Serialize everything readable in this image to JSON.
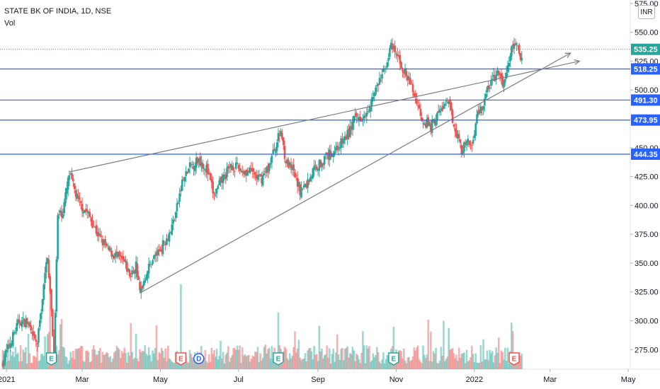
{
  "header": {
    "symbol_line": "STATE BK OF INDIA, 1D, NSE",
    "volume_label": "Vol",
    "currency_button": "INR"
  },
  "colors": {
    "up": "#26a69a",
    "down": "#ef5350",
    "level_line": "#2962ff",
    "price_tag_current": "#26a69a",
    "trendline": "#787b86",
    "event_earnings_green": "#26a69a",
    "event_earnings_red": "#ef5350",
    "event_dividend": "#2962ff"
  },
  "chart_data": {
    "type": "candlestick",
    "title": "STATE BK OF INDIA, 1D, NSE",
    "y_axis": {
      "ticks": [
        275,
        300,
        325,
        350,
        375,
        400,
        425,
        450,
        475,
        500,
        525,
        550,
        575
      ],
      "tick_labels": [
        "275.00",
        "300.00",
        "325.00",
        "350.00",
        "375.00",
        "400.00",
        "425.00",
        "450.00",
        "475.00",
        "500.00",
        "525.00",
        "550.00",
        "575.00"
      ],
      "range": [
        258,
        578
      ],
      "position": "right"
    },
    "x_axis": {
      "tick_labels": [
        "2021",
        "Mar",
        "May",
        "Jul",
        "Sep",
        "Nov",
        "2022",
        "Mar",
        "May"
      ],
      "tick_days": [
        0,
        59,
        120,
        181,
        243,
        304,
        365,
        424,
        485
      ]
    },
    "horizontal_levels": [
      {
        "label": "518.25",
        "value": 518.25
      },
      {
        "label": "491.30",
        "value": 491.3
      },
      {
        "label": "473.95",
        "value": 473.95
      },
      {
        "label": "444.35",
        "value": 444.35
      }
    ],
    "current_price": {
      "label": "535.25",
      "value": 535.25
    },
    "trendlines": [
      {
        "points": [
          [
            49,
            429
          ],
          [
            447,
            525
          ]
        ]
      },
      {
        "points": [
          [
            104,
            324
          ],
          [
            440,
            532
          ]
        ]
      }
    ],
    "series": [
      {
        "anchors": [
          [
            -3,
            265
          ],
          [
            10,
            300
          ],
          [
            17,
            298
          ],
          [
            20,
            285
          ],
          [
            24,
            280
          ],
          [
            28,
            320
          ],
          [
            32,
            358
          ],
          [
            37,
            272
          ],
          [
            40,
            390
          ],
          [
            44,
            395
          ],
          [
            49,
            427
          ],
          [
            56,
            403
          ],
          [
            64,
            392
          ],
          [
            72,
            373
          ],
          [
            80,
            360
          ],
          [
            86,
            356
          ],
          [
            92,
            350
          ],
          [
            97,
            338
          ],
          [
            101,
            349
          ],
          [
            104,
            324
          ],
          [
            108,
            338
          ],
          [
            113,
            352
          ],
          [
            120,
            362
          ],
          [
            128,
            378
          ],
          [
            133,
            398
          ],
          [
            137,
            420
          ],
          [
            143,
            433
          ],
          [
            150,
            440
          ],
          [
            156,
            432
          ],
          [
            162,
            408
          ],
          [
            168,
            422
          ],
          [
            176,
            435
          ],
          [
            184,
            430
          ],
          [
            192,
            428
          ],
          [
            198,
            422
          ],
          [
            204,
            432
          ],
          [
            210,
            452
          ],
          [
            214,
            465
          ],
          [
            218,
            438
          ],
          [
            224,
            428
          ],
          [
            229,
            413
          ],
          [
            234,
            418
          ],
          [
            240,
            432
          ],
          [
            248,
            440
          ],
          [
            256,
            448
          ],
          [
            262,
            455
          ],
          [
            267,
            463
          ],
          [
            271,
            474
          ],
          [
            278,
            478
          ],
          [
            283,
            487
          ],
          [
            288,
            500
          ],
          [
            294,
            515
          ],
          [
            300,
            537
          ],
          [
            306,
            527
          ],
          [
            311,
            514
          ],
          [
            316,
            503
          ],
          [
            320,
            490
          ],
          [
            324,
            476
          ],
          [
            327,
            472
          ],
          [
            331,
            468
          ],
          [
            336,
            478
          ],
          [
            341,
            486
          ],
          [
            345,
            488
          ],
          [
            349,
            471
          ],
          [
            352,
            460
          ],
          [
            355,
            448
          ],
          [
            359,
            454
          ],
          [
            363,
            452
          ],
          [
            367,
            478
          ],
          [
            372,
            488
          ],
          [
            376,
            503
          ],
          [
            380,
            510
          ],
          [
            384,
            514
          ],
          [
            387,
            505
          ],
          [
            390,
            512
          ],
          [
            393,
            532
          ],
          [
            397,
            542
          ],
          [
            400,
            530
          ],
          [
            402,
            528
          ]
        ]
      }
    ],
    "volume": {
      "relative_scale": true
    },
    "events": [
      {
        "day": 35,
        "type": "earnings",
        "letter": "E",
        "color": "#26a69a"
      },
      {
        "day": 136,
        "type": "earnings",
        "letter": "E",
        "color": "#ef5350"
      },
      {
        "day": 150,
        "type": "dividend",
        "letter": "D",
        "color": "#2962ff"
      },
      {
        "day": 212,
        "type": "earnings",
        "letter": "E",
        "color": "#26a69a"
      },
      {
        "day": 302,
        "type": "earnings",
        "letter": "E",
        "color": "#26a69a"
      },
      {
        "day": 396,
        "type": "earnings",
        "letter": "E",
        "color": "#ef5350"
      }
    ]
  }
}
